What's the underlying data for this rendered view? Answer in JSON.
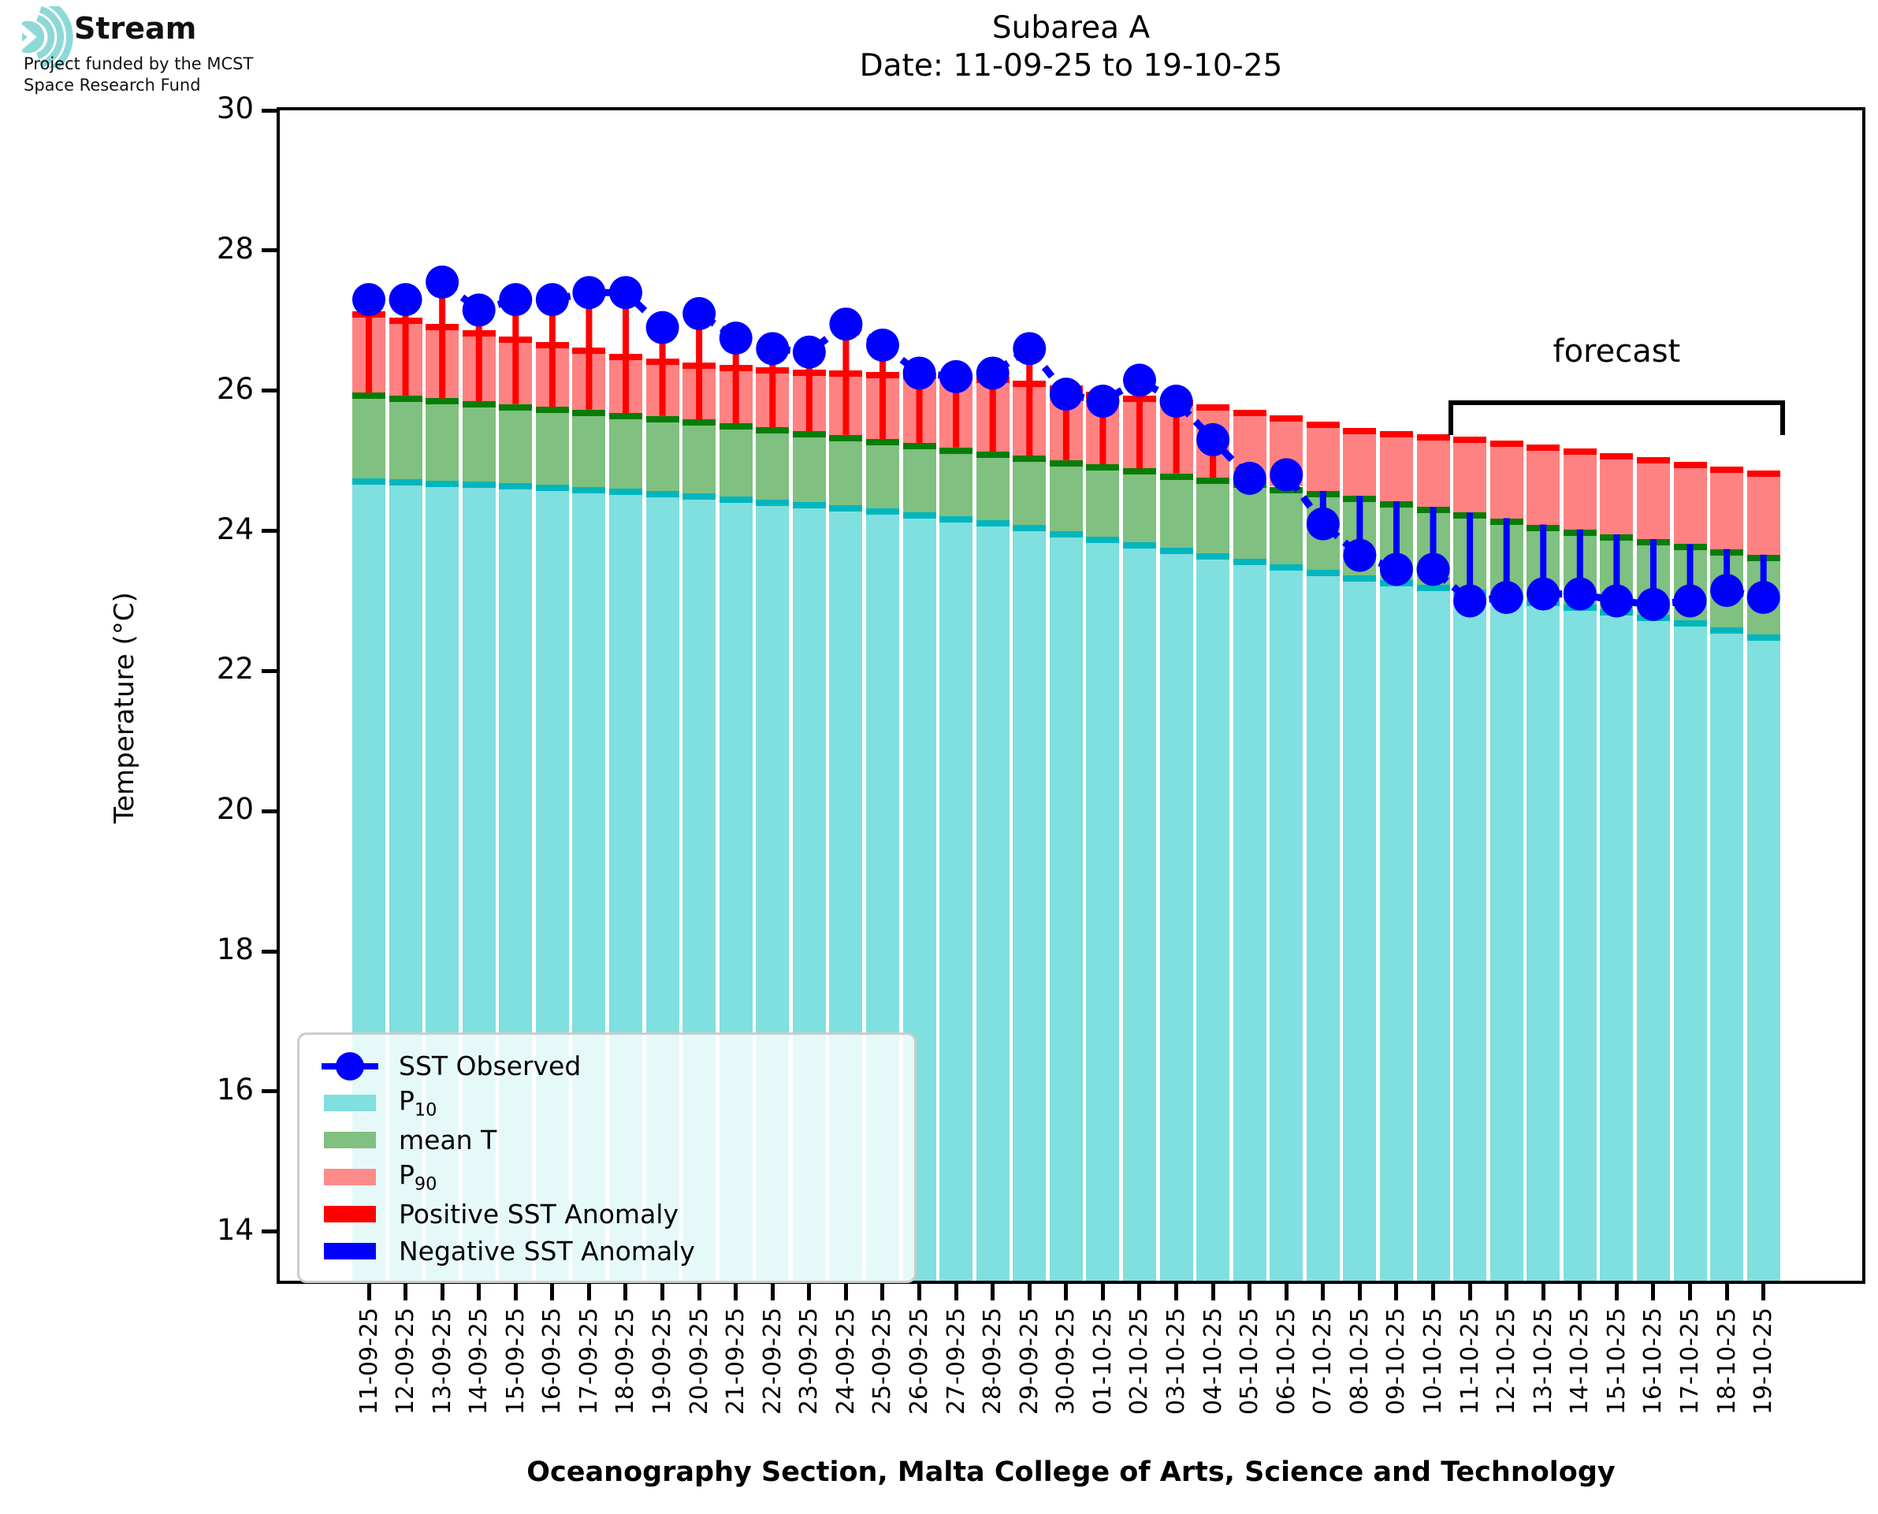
{
  "logo": {
    "brand": "Stream",
    "subtitle_line1": "Project funded by the MCST",
    "subtitle_line2": "Space Research Fund",
    "icon_color": "#8FD8D8"
  },
  "title": {
    "line1": "Subarea A",
    "line2": "Date: 11-09-25 to 19-10-25"
  },
  "axes": {
    "ylabel": "Temperature (°C)",
    "yticks": [
      30,
      28,
      26,
      24,
      22,
      20,
      18,
      16,
      14
    ],
    "ylim": [
      13.3,
      30
    ]
  },
  "footer": {
    "text": "Oceanography Section, Malta College of Arts, Science and Technology"
  },
  "annotations": {
    "forecast_label": "forecast",
    "forecast_start_date": "11-10-25",
    "forecast_end_date": "19-10-25"
  },
  "legend": {
    "items": [
      {
        "label": "SST Observed",
        "swatch": "line-marker",
        "color": "#0000FF"
      },
      {
        "label": "P",
        "sub": "10",
        "swatch": "patch",
        "color": "#80DFDF"
      },
      {
        "label": "mean T",
        "swatch": "patch",
        "color": "#80C080"
      },
      {
        "label": "P",
        "sub": "90",
        "swatch": "patch",
        "color": "#FF8A8A"
      },
      {
        "label": "Positive SST Anomaly",
        "swatch": "patch",
        "color": "#FF0000"
      },
      {
        "label": "Negative SST Anomaly",
        "swatch": "patch",
        "color": "#0000FF"
      }
    ]
  },
  "colors": {
    "p10_fill": "#80DFDF",
    "p10_cap": "#00B6BE",
    "mean_fill": "#80C080",
    "mean_cap": "#077D07",
    "p90_fill": "#FF8282",
    "p90_cap": "#FF0000",
    "observed": "#0000FF",
    "positive_anomaly": "#FF0000",
    "negative_anomaly": "#0000FF"
  },
  "chart_data": {
    "type": "bar",
    "subtype": "climatology-bands with observed SST line, anomaly stems",
    "title": "Subarea A  Date: 11-09-25 to 19-10-25",
    "xlabel": "Oceanography Section, Malta College of Arts, Science and Technology",
    "ylabel": "Temperature (°C)",
    "ylim": [
      13.3,
      30
    ],
    "grid": false,
    "legend_position": "lower left",
    "categories": [
      "11-09-25",
      "12-09-25",
      "13-09-25",
      "14-09-25",
      "15-09-25",
      "16-09-25",
      "17-09-25",
      "18-09-25",
      "19-09-25",
      "20-09-25",
      "21-09-25",
      "22-09-25",
      "23-09-25",
      "24-09-25",
      "25-09-25",
      "26-09-25",
      "27-09-25",
      "28-09-25",
      "29-09-25",
      "30-09-25",
      "01-10-25",
      "02-10-25",
      "03-10-25",
      "04-10-25",
      "05-10-25",
      "06-10-25",
      "07-10-25",
      "08-10-25",
      "09-10-25",
      "10-10-25",
      "11-10-25",
      "12-10-25",
      "13-10-25",
      "14-10-25",
      "15-10-25",
      "16-10-25",
      "17-10-25",
      "18-10-25",
      "19-10-25"
    ],
    "series": [
      {
        "name": "SST Observed",
        "type": "line+markers",
        "values": [
          27.3,
          27.3,
          27.55,
          27.15,
          27.3,
          27.3,
          27.4,
          27.4,
          26.9,
          27.1,
          26.75,
          26.6,
          26.55,
          26.95,
          26.65,
          26.25,
          26.2,
          26.25,
          26.6,
          25.95,
          25.85,
          26.15,
          25.85,
          25.3,
          24.75,
          24.8,
          24.1,
          23.65,
          23.45,
          23.45,
          23.0,
          23.05,
          23.1,
          23.1,
          23.0,
          22.95,
          23.0,
          23.15,
          23.05
        ]
      },
      {
        "name": "P10",
        "type": "bar",
        "values": [
          24.75,
          24.74,
          24.72,
          24.7,
          24.68,
          24.66,
          24.63,
          24.6,
          24.57,
          24.53,
          24.49,
          24.45,
          24.41,
          24.37,
          24.32,
          24.27,
          24.21,
          24.15,
          24.08,
          24.0,
          23.92,
          23.84,
          23.76,
          23.68,
          23.6,
          23.52,
          23.44,
          23.37,
          23.3,
          23.23,
          23.16,
          23.09,
          23.02,
          22.95,
          22.88,
          22.8,
          22.72,
          22.62,
          22.52
        ]
      },
      {
        "name": "mean T",
        "type": "bar",
        "values": [
          25.97,
          25.93,
          25.89,
          25.85,
          25.81,
          25.77,
          25.73,
          25.68,
          25.64,
          25.59,
          25.53,
          25.48,
          25.42,
          25.37,
          25.31,
          25.25,
          25.19,
          25.13,
          25.07,
          25.01,
          24.95,
          24.89,
          24.82,
          24.76,
          24.7,
          24.63,
          24.57,
          24.5,
          24.42,
          24.34,
          24.26,
          24.18,
          24.09,
          24.02,
          23.95,
          23.88,
          23.81,
          23.74,
          23.66
        ]
      },
      {
        "name": "P90",
        "type": "bar",
        "values": [
          27.13,
          27.04,
          26.95,
          26.86,
          26.77,
          26.69,
          26.61,
          26.53,
          26.46,
          26.4,
          26.37,
          26.33,
          26.3,
          26.29,
          26.27,
          26.25,
          26.23,
          26.2,
          26.14,
          26.07,
          25.99,
          25.93,
          25.87,
          25.8,
          25.73,
          25.65,
          25.56,
          25.47,
          25.42,
          25.38,
          25.34,
          25.29,
          25.23,
          25.17,
          25.11,
          25.05,
          24.98,
          24.92,
          24.86
        ]
      }
    ],
    "anomaly_rule": "stem from mean T to SST Observed; red when positive, blue when negative",
    "forecast_window": {
      "start": "11-10-25",
      "end": "19-10-25"
    }
  }
}
